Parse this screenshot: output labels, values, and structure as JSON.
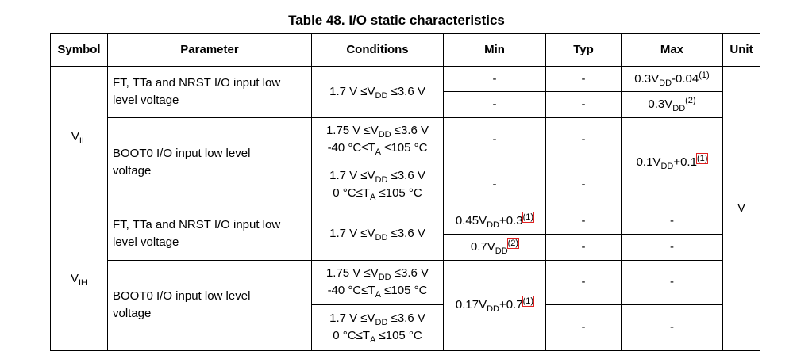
{
  "title": "Table 48. I/O static characteristics",
  "table": {
    "header": [
      "Symbol",
      "Parameter",
      "Conditions",
      "Min",
      "Typ",
      "Max",
      "Unit"
    ],
    "rows": [
      [
        [
          [
            {
              "text": "V"
            },
            {
              "sub": "IL"
            }
          ]
        ],
        [
          "FT, TTa and NRST I/O input low",
          "level voltage"
        ],
        [
          [
            {
              "text": "1.7 V ≤V"
            },
            {
              "sub": "DD"
            },
            {
              "text": " ≤3.6 V"
            }
          ]
        ],
        [
          "-"
        ],
        [
          "-"
        ],
        [
          [
            {
              "text": "0.3V"
            },
            {
              "sub": "DD"
            },
            {
              "text": "-0.04"
            },
            {
              "sup": "(1)"
            }
          ]
        ],
        [
          "V"
        ]
      ],
      [
        [
          "-"
        ],
        [
          "-"
        ],
        [
          [
            {
              "text": "0.3V"
            },
            {
              "sub": "DD"
            },
            {
              "sup": "(2)"
            }
          ]
        ]
      ],
      [
        [
          "BOOT0 I/O input low level",
          "voltage"
        ],
        [
          [
            {
              "text": "1.75 V ≤V"
            },
            {
              "sub": "DD"
            },
            {
              "text": " ≤3.6 V"
            }
          ],
          [
            {
              "text": "-40 °C≤T"
            },
            {
              "sub": "A"
            },
            {
              "text": " ≤105 °C"
            }
          ]
        ],
        [
          "-"
        ],
        [
          "-"
        ],
        [
          [
            {
              "text": "0.1V"
            },
            {
              "sub": "DD"
            },
            {
              "text": "+0.1"
            },
            {
              "sup": "(1)",
              "boxed": true
            }
          ]
        ]
      ],
      [
        [
          [
            {
              "text": "1.7 V ≤V"
            },
            {
              "sub": "DD"
            },
            {
              "text": " ≤3.6 V"
            }
          ],
          [
            {
              "text": "0 °C≤T"
            },
            {
              "sub": "A"
            },
            {
              "text": " ≤105 °C"
            }
          ]
        ],
        [
          "-"
        ],
        [
          "-"
        ]
      ],
      [
        [
          [
            {
              "text": "V"
            },
            {
              "sub": "IH"
            }
          ]
        ],
        [
          "FT, TTa and NRST I/O input low",
          "level voltage"
        ],
        [
          [
            {
              "text": "1.7 V ≤V"
            },
            {
              "sub": "DD"
            },
            {
              "text": " ≤3.6 V"
            }
          ]
        ],
        [
          [
            {
              "text": "0.45V"
            },
            {
              "sub": "DD"
            },
            {
              "text": "+0.3"
            },
            {
              "sup": "(1)",
              "boxed": true
            }
          ]
        ],
        [
          "-"
        ],
        [
          "-"
        ]
      ],
      [
        [
          [
            {
              "text": "0.7V"
            },
            {
              "sub": "DD"
            },
            {
              "sup": "(2)",
              "boxed": true
            }
          ]
        ],
        [
          "-"
        ],
        [
          "-"
        ]
      ],
      [
        [
          "BOOT0 I/O input low level",
          "voltage"
        ],
        [
          [
            {
              "text": "1.75 V ≤V"
            },
            {
              "sub": "DD"
            },
            {
              "text": " ≤3.6 V"
            }
          ],
          [
            {
              "text": "-40 °C≤T"
            },
            {
              "sub": "A"
            },
            {
              "text": " ≤105 °C"
            }
          ]
        ],
        [
          [
            {
              "text": "0.17V"
            },
            {
              "sub": "DD"
            },
            {
              "text": "+0.7"
            },
            {
              "sup": "(1)",
              "boxed": true
            }
          ]
        ],
        [
          "-"
        ],
        [
          "-"
        ]
      ],
      [
        [
          [
            {
              "text": "1.7 V ≤V"
            },
            {
              "sub": "DD"
            },
            {
              "text": " ≤3.6 V"
            }
          ],
          [
            {
              "text": "0 °C≤T"
            },
            {
              "sub": "A"
            },
            {
              "text": " ≤105 °C"
            }
          ]
        ],
        [
          "-"
        ],
        [
          "-"
        ]
      ]
    ]
  }
}
